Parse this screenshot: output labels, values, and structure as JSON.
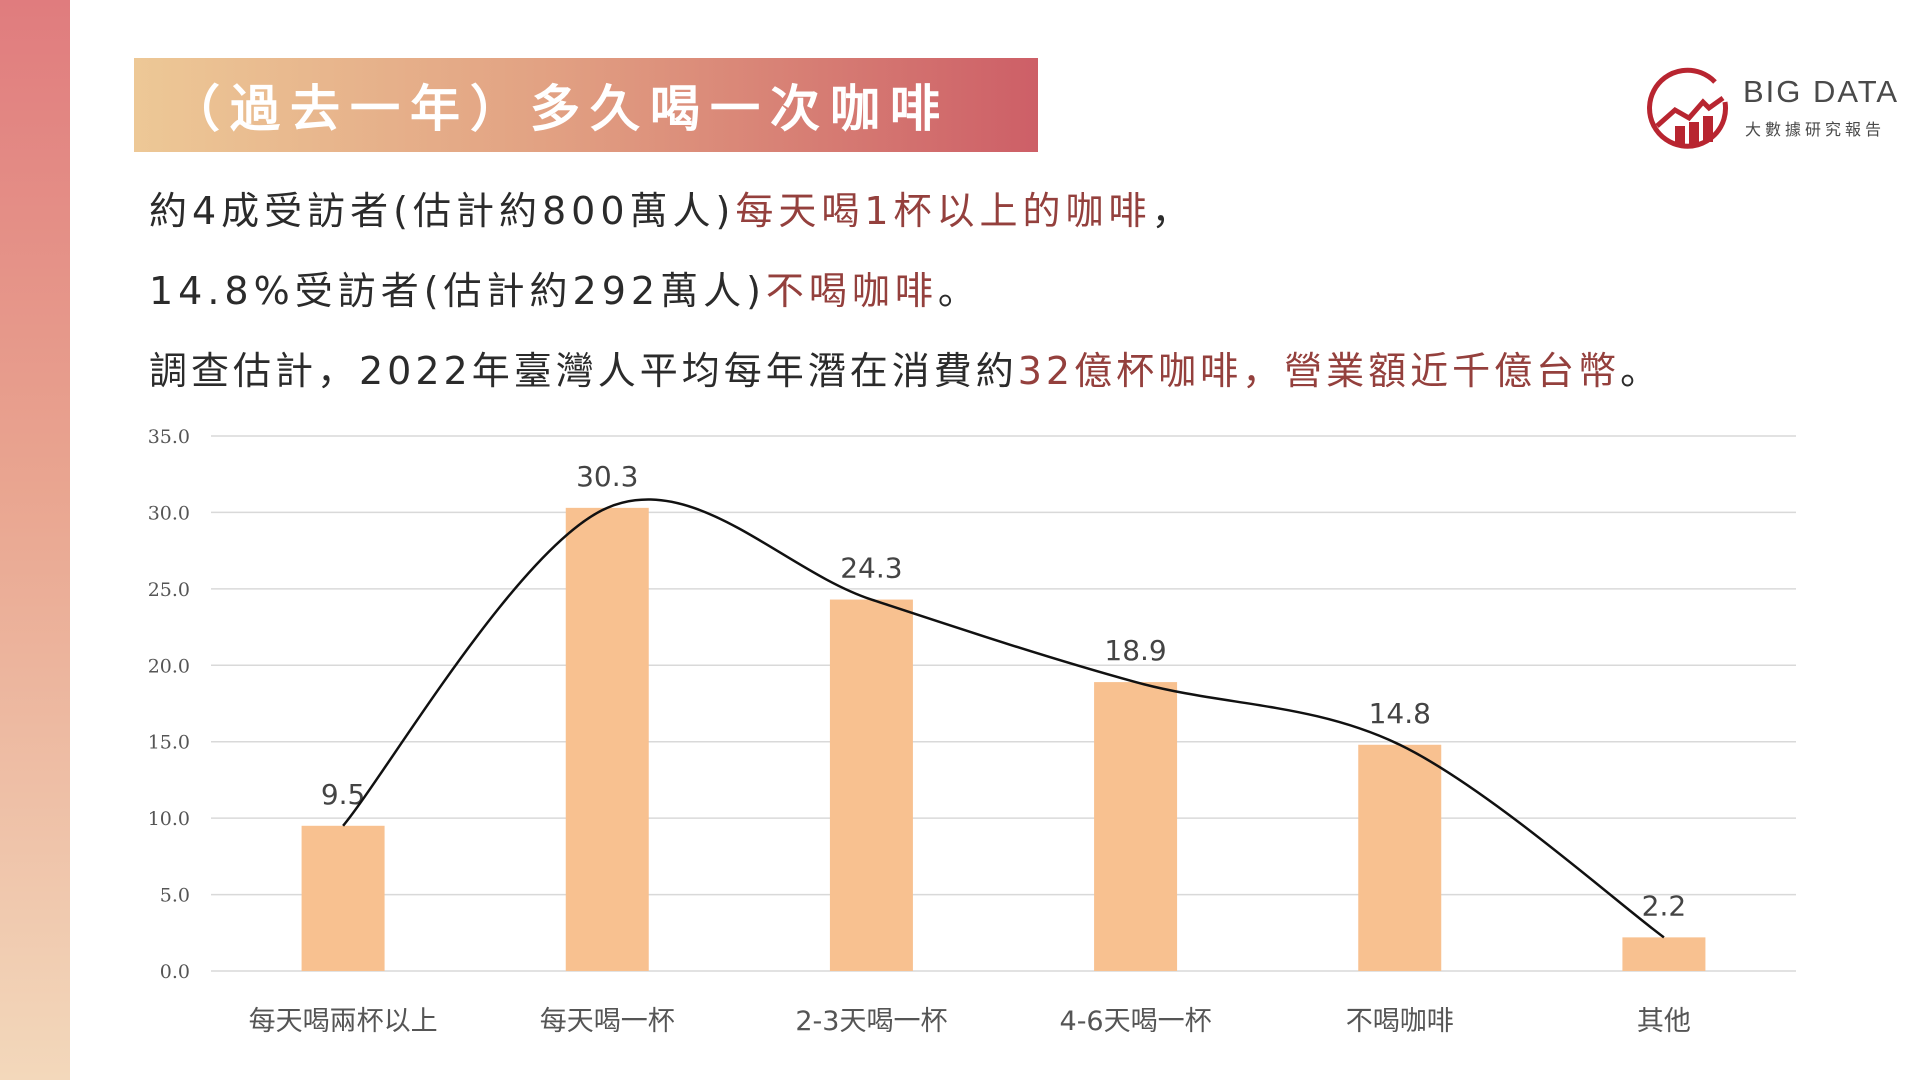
{
  "title": "（過去一年）多久喝一次咖啡",
  "logo": {
    "word": "BIG DATA",
    "sub": "大數據研究報告"
  },
  "text_lines": [
    [
      {
        "t": "約4成受訪者(估計約800萬人)",
        "hl": false
      },
      {
        "t": "每天喝1杯以上的咖啡",
        "hl": true
      },
      {
        "t": "，",
        "hl": false
      }
    ],
    [
      {
        "t": "14.8%受訪者(估計約292萬人)",
        "hl": false
      },
      {
        "t": "不喝咖啡",
        "hl": true
      },
      {
        "t": "。",
        "hl": false
      }
    ],
    [
      {
        "t": "調查估計，2022年臺灣人平均每年潛在消費約",
        "hl": false
      },
      {
        "t": "32億杯咖啡，營業額近千億台幣",
        "hl": true
      },
      {
        "t": "。",
        "hl": false
      }
    ]
  ],
  "colors": {
    "bar": "#f8c190",
    "highlight": "#94403d",
    "curve": "#111111",
    "grid": "#d9d9d9",
    "logo_red": "#b82530"
  },
  "chart_data": {
    "type": "bar",
    "categories": [
      "每天喝兩杯以上",
      "每天喝一杯",
      "2-3天喝一杯",
      "4-6天喝一杯",
      "不喝咖啡",
      "其他"
    ],
    "values": [
      9.5,
      30.3,
      24.3,
      18.9,
      14.8,
      2.2
    ],
    "data_labels": [
      "9.5",
      "30.3",
      "24.3",
      "18.9",
      "14.8",
      "2.2"
    ],
    "yticks": [
      "0.0",
      "5.0",
      "10.0",
      "15.0",
      "20.0",
      "25.0",
      "30.0",
      "35.0"
    ],
    "ylim": [
      0,
      35
    ],
    "grid": true,
    "overlay": "smooth trend line through bar tops",
    "title": "",
    "xlabel": "",
    "ylabel": ""
  }
}
